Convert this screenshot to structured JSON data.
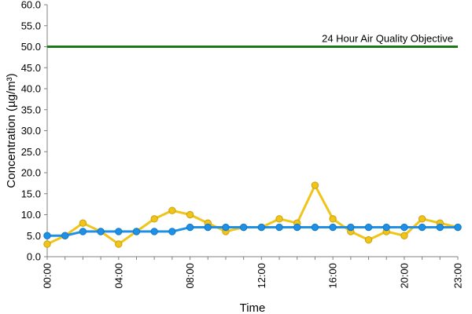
{
  "chart_data": {
    "type": "line",
    "xlabel": "Time",
    "ylabel": "Concentration (µg/m³)",
    "ylim": [
      0,
      60
    ],
    "y_ticks": [
      "0.0",
      "5.0",
      "10.0",
      "15.0",
      "20.0",
      "25.0",
      "30.0",
      "35.0",
      "40.0",
      "45.0",
      "50.0",
      "55.0",
      "60.0"
    ],
    "x": [
      "00:00",
      "01:00",
      "02:00",
      "03:00",
      "04:00",
      "05:00",
      "06:00",
      "07:00",
      "08:00",
      "09:00",
      "10:00",
      "11:00",
      "12:00",
      "13:00",
      "14:00",
      "15:00",
      "16:00",
      "17:00",
      "18:00",
      "19:00",
      "20:00",
      "21:00",
      "22:00",
      "23:00"
    ],
    "x_tick_labels": [
      "00:00",
      "04:00",
      "08:00",
      "12:00",
      "16:00",
      "20:00",
      "23:00"
    ],
    "grid": false,
    "series": [
      {
        "color": "#f0c419",
        "values": [
          3,
          5,
          8,
          6,
          3,
          6,
          9,
          11,
          10,
          8,
          6,
          7,
          7,
          9,
          8,
          17,
          9,
          6,
          4,
          6,
          5,
          9,
          8,
          7
        ]
      },
      {
        "color": "#1e90e6",
        "values": [
          5,
          5,
          6,
          6,
          6,
          6,
          6,
          6,
          7,
          7,
          7,
          7,
          7,
          7,
          7,
          7,
          7,
          7,
          7,
          7,
          7,
          7,
          7,
          7
        ]
      }
    ],
    "reference_line": {
      "label": "24 Hour Air Quality Objective",
      "value": 50,
      "color": "#1a7a1a"
    }
  }
}
